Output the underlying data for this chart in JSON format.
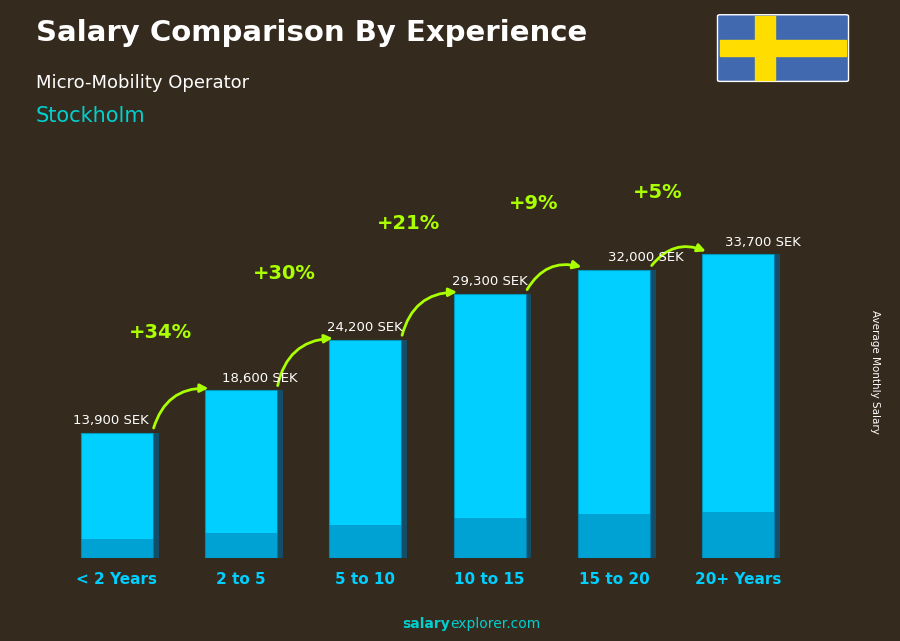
{
  "title": "Salary Comparison By Experience",
  "subtitle1": "Micro-Mobility Operator",
  "subtitle2": "Stockholm",
  "categories": [
    "< 2 Years",
    "2 to 5",
    "5 to 10",
    "10 to 15",
    "15 to 20",
    "20+ Years"
  ],
  "values": [
    13900,
    18600,
    24200,
    29300,
    32000,
    33700
  ],
  "labels": [
    "13,900 SEK",
    "18,600 SEK",
    "24,200 SEK",
    "29,300 SEK",
    "32,000 SEK",
    "33,700 SEK"
  ],
  "pct_labels": [
    "+34%",
    "+30%",
    "+21%",
    "+9%",
    "+5%"
  ],
  "bar_color_top": "#00CFFF",
  "bar_color_bot": "#0080BB",
  "pct_color": "#AAFF00",
  "label_color": "#FFFFFF",
  "title_color": "#FFFFFF",
  "subtitle1_color": "#FFFFFF",
  "subtitle2_color": "#00D0D0",
  "footer_bold": "salary",
  "footer_normal": "explorer.com",
  "ylabel_text": "Average Monthly Salary",
  "ylim_max": 42000,
  "bar_width": 0.58,
  "flag_blue": "#4169B0",
  "flag_yellow": "#FFDD00"
}
